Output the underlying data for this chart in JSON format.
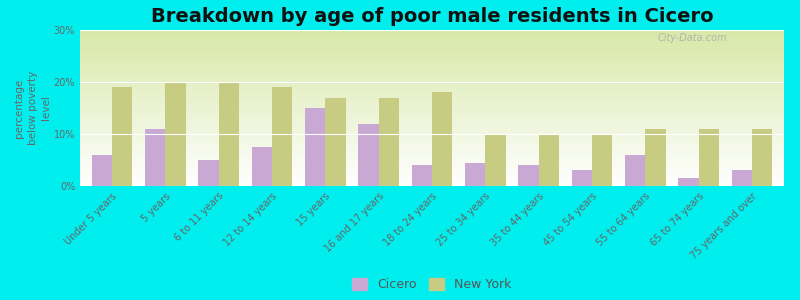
{
  "title": "Breakdown by age of poor male residents in Cicero",
  "ylabel": "percentage\nbelow poverty\nlevel",
  "categories": [
    "Under 5 years",
    "5 years",
    "6 to 11 years",
    "12 to 14 years",
    "15 years",
    "16 and 17 years",
    "18 to 24 years",
    "25 to 34 years",
    "35 to 44 years",
    "45 to 54 years",
    "55 to 64 years",
    "65 to 74 years",
    "75 years and over"
  ],
  "cicero_values": [
    6.0,
    11.0,
    5.0,
    7.5,
    15.0,
    12.0,
    4.0,
    4.5,
    4.0,
    3.0,
    6.0,
    1.5,
    3.0
  ],
  "newyork_values": [
    19.0,
    20.0,
    20.0,
    19.0,
    17.0,
    17.0,
    18.0,
    10.0,
    10.0,
    10.0,
    11.0,
    11.0,
    11.0
  ],
  "cicero_color": "#c9a8d4",
  "newyork_color": "#c8cc82",
  "background_color": "#00eeee",
  "ylim": [
    0,
    30
  ],
  "yticks": [
    0,
    10,
    20,
    30
  ],
  "ytick_labels": [
    "0%",
    "10%",
    "20%",
    "30%"
  ],
  "title_fontsize": 14,
  "axis_label_fontsize": 7.5,
  "tick_label_fontsize": 7,
  "legend_labels": [
    "Cicero",
    "New York"
  ],
  "bar_width": 0.38
}
